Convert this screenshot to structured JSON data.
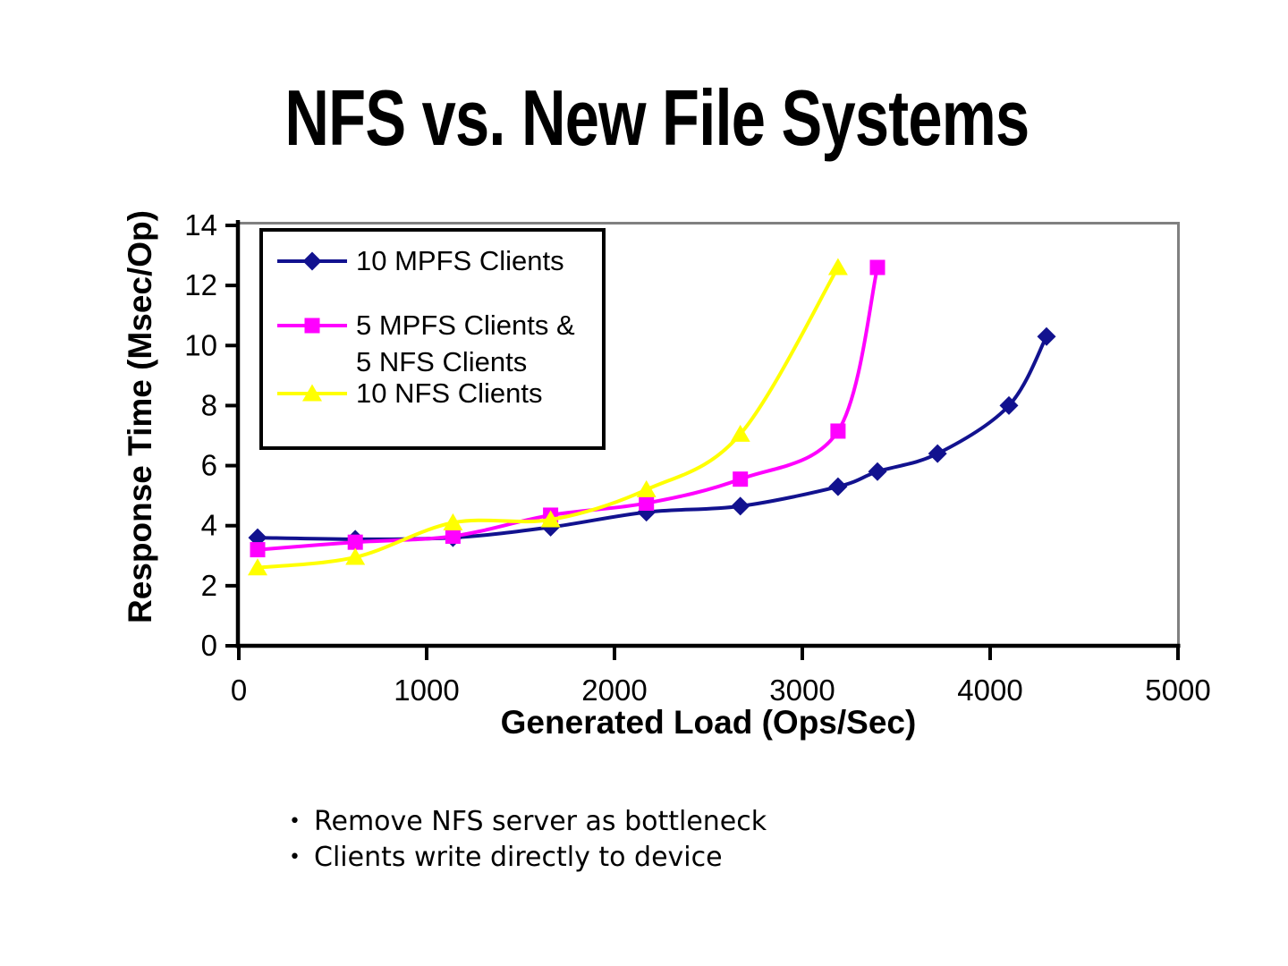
{
  "slide": {
    "title": "NFS vs. New File Systems",
    "bullet_char": "•",
    "bullets": [
      "Remove NFS server as bottleneck",
      "Clients write directly to device"
    ]
  },
  "chart_data": {
    "type": "line",
    "title": "",
    "xlabel": "Generated Load (Ops/Sec)",
    "ylabel": "Response Time (Msec/Op)",
    "xlim": [
      0,
      5000
    ],
    "ylim": [
      0,
      14
    ],
    "x_ticks": [
      0,
      1000,
      2000,
      3000,
      4000,
      5000
    ],
    "y_ticks": [
      0,
      2,
      4,
      6,
      8,
      10,
      12,
      14
    ],
    "grid": false,
    "line_style": "smooth",
    "axis_color": "#000000",
    "plot_border_color": "#808080",
    "legend_position": "top-left-inside",
    "series": [
      {
        "name": "10 MPFS Clients",
        "legend_lines": [
          "10 MPFS Clients"
        ],
        "color": "#12128F",
        "marker": "diamond",
        "points": [
          [
            100,
            3.6
          ],
          [
            620,
            3.55
          ],
          [
            1140,
            3.6
          ],
          [
            1660,
            3.95
          ],
          [
            2170,
            4.45
          ],
          [
            2670,
            4.65
          ],
          [
            3190,
            5.3
          ],
          [
            3400,
            5.8
          ],
          [
            3720,
            6.4
          ],
          [
            4100,
            8.0
          ],
          [
            4300,
            10.3
          ]
        ]
      },
      {
        "name": "5 MPFS Clients & 5 NFS Clients",
        "legend_lines": [
          "5 MPFS Clients &",
          "5 NFS Clients"
        ],
        "color": "#FF00FF",
        "marker": "square",
        "points": [
          [
            100,
            3.2
          ],
          [
            620,
            3.45
          ],
          [
            1140,
            3.65
          ],
          [
            1660,
            4.35
          ],
          [
            2170,
            4.75
          ],
          [
            2670,
            5.55
          ],
          [
            3190,
            7.15
          ],
          [
            3400,
            12.6
          ]
        ]
      },
      {
        "name": "10 NFS Clients",
        "legend_lines": [
          "10 NFS Clients"
        ],
        "color": "#FFFF00",
        "marker": "triangle",
        "points": [
          [
            100,
            2.6
          ],
          [
            620,
            2.95
          ],
          [
            1140,
            4.1
          ],
          [
            1660,
            4.2
          ],
          [
            2170,
            5.2
          ],
          [
            2670,
            7.05
          ],
          [
            3190,
            12.6
          ]
        ]
      }
    ]
  }
}
